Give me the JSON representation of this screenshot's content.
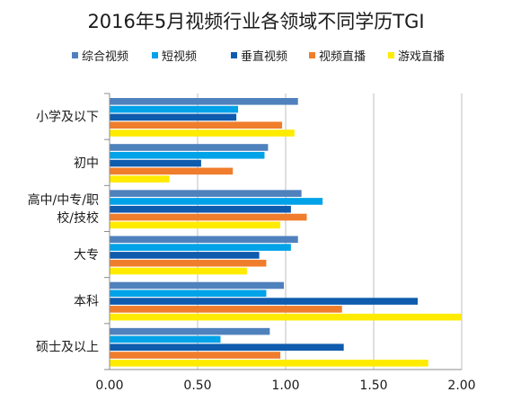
{
  "chart_data": {
    "type": "bar",
    "orientation": "horizontal",
    "title": "2016年5月视频行业各领域不同学历TGI",
    "xlabel": "",
    "ylabel": "",
    "xlim": [
      0,
      2
    ],
    "x_ticks": [
      "0.00",
      "0.50",
      "1.00",
      "1.50",
      "2.00"
    ],
    "grid": true,
    "legend_position": "top",
    "categories": [
      {
        "lines": [
          "小学及以下"
        ]
      },
      {
        "lines": [
          "初中"
        ]
      },
      {
        "lines": [
          "高中/中专/职",
          "校/技校"
        ]
      },
      {
        "lines": [
          "大专"
        ]
      },
      {
        "lines": [
          "本科"
        ]
      },
      {
        "lines": [
          "硕士及以上"
        ]
      }
    ],
    "series": [
      {
        "name": "综合视频",
        "color": "#4F81BD",
        "values": [
          1.07,
          0.9,
          1.09,
          1.07,
          0.99,
          0.91
        ]
      },
      {
        "name": "短视频",
        "color": "#00A2E8",
        "values": [
          0.73,
          0.88,
          1.21,
          1.03,
          0.89,
          0.63
        ]
      },
      {
        "name": "垂直视频",
        "color": "#0F5BAD",
        "values": [
          0.72,
          0.52,
          1.03,
          0.85,
          1.75,
          1.33
        ]
      },
      {
        "name": "视频直播",
        "color": "#F07D2C",
        "values": [
          0.98,
          0.7,
          1.12,
          0.89,
          1.32,
          0.97
        ]
      },
      {
        "name": "游戏直播",
        "color": "#FFEB00",
        "values": [
          1.05,
          0.34,
          0.97,
          0.78,
          2.0,
          1.81
        ]
      }
    ]
  }
}
